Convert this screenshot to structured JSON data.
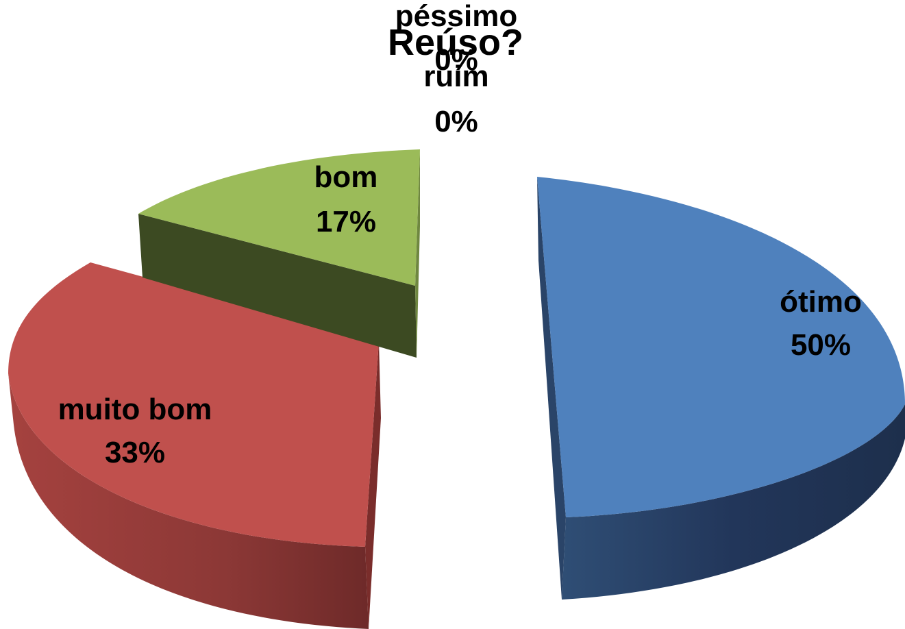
{
  "chart_data": {
    "type": "pie",
    "style": "3d-exploded",
    "title_top": "",
    "title_line2": "Reúso?",
    "slices": [
      {
        "label": "ótimo",
        "value": 50,
        "pct_label": "50%",
        "color": "#4F81BD"
      },
      {
        "label": "muito bom",
        "value": 33,
        "pct_label": "33%",
        "color": "#C0504D"
      },
      {
        "label": "bom",
        "value": 17,
        "pct_label": "17%",
        "color": "#9BBB59"
      },
      {
        "label": "ruim",
        "value": 0,
        "pct_label": "0%",
        "color": "#8064A2"
      },
      {
        "label": "péssimo",
        "value": 0,
        "pct_label": "0%",
        "color": "#4BACC6"
      }
    ]
  }
}
